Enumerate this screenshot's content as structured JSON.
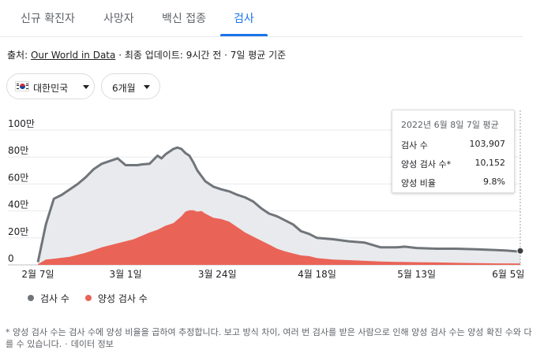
{
  "tabs": [
    {
      "label": "신규 확진자"
    },
    {
      "label": "사망자"
    },
    {
      "label": "백신 접종"
    },
    {
      "label": "검사"
    }
  ],
  "active_tab_index": 3,
  "source": {
    "prefix": "출처: ",
    "link": "Our World in Data",
    "suffix": " · 최종 업데이트: 9시간 전 · 7일 평균 기준"
  },
  "filters": {
    "region": "대한민국",
    "period": "6개월"
  },
  "tooltip": {
    "date": "2022년 6월 8일 7일 평균",
    "rows": [
      {
        "label": "검사 수",
        "value": "103,907"
      },
      {
        "label": "양성 검사 수*",
        "value": "10,152"
      },
      {
        "label": "양성 비율",
        "value": "9.8%"
      }
    ]
  },
  "colors": {
    "tests": "#70757a",
    "tests_fill": "#e8eaed",
    "positive": "#ea6357",
    "accent": "#1a73e8"
  },
  "chart_data": {
    "type": "area",
    "ylabel": "",
    "ylim": [
      0,
      1000000
    ],
    "y_ticks": [
      {
        "value": 0,
        "label": "0"
      },
      {
        "value": 200000,
        "label": "20만"
      },
      {
        "value": 400000,
        "label": "40만"
      },
      {
        "value": 600000,
        "label": "60만"
      },
      {
        "value": 800000,
        "label": "80만"
      },
      {
        "value": 1000000,
        "label": "100만"
      }
    ],
    "x_ticks": [
      {
        "day": 0,
        "label": "2월 7일"
      },
      {
        "day": 22,
        "label": "3월 1일"
      },
      {
        "day": 45,
        "label": "3월 24일"
      },
      {
        "day": 70,
        "label": "4월 18일"
      },
      {
        "day": 95,
        "label": "5월 13일"
      },
      {
        "day": 118,
        "label": "6월 5일"
      }
    ],
    "x_range": [
      0,
      121
    ],
    "series": [
      {
        "name": "검사 수",
        "x": [
          0,
          2,
          4,
          6,
          8,
          10,
          12,
          14,
          16,
          18,
          20,
          22,
          23,
          24,
          25,
          26,
          28,
          30,
          31,
          32,
          33,
          34,
          35,
          36,
          37,
          38,
          39,
          40,
          42,
          44,
          46,
          48,
          50,
          52,
          54,
          56,
          58,
          60,
          62,
          64,
          66,
          68,
          70,
          74,
          78,
          82,
          86,
          88,
          90,
          92,
          95,
          100,
          105,
          110,
          115,
          118,
          120,
          121
        ],
        "values": [
          20000,
          300000,
          490000,
          520000,
          560000,
          600000,
          650000,
          710000,
          750000,
          770000,
          790000,
          740000,
          740000,
          740000,
          740000,
          745000,
          750000,
          810000,
          790000,
          820000,
          840000,
          860000,
          870000,
          860000,
          830000,
          810000,
          760000,
          700000,
          620000,
          580000,
          560000,
          545000,
          520000,
          500000,
          470000,
          420000,
          380000,
          360000,
          330000,
          300000,
          250000,
          230000,
          200000,
          190000,
          175000,
          165000,
          130000,
          130000,
          130000,
          135000,
          125000,
          120000,
          120000,
          115000,
          110000,
          105000,
          100000,
          103907
        ]
      },
      {
        "name": "양성 검사 수",
        "x": [
          0,
          2,
          4,
          8,
          12,
          16,
          20,
          24,
          28,
          30,
          32,
          34,
          36,
          37,
          38,
          39,
          40,
          41,
          42,
          44,
          46,
          48,
          50,
          52,
          54,
          56,
          58,
          60,
          62,
          64,
          66,
          68,
          70,
          74,
          78,
          82,
          86,
          90,
          95,
          100,
          105,
          110,
          115,
          121
        ],
        "values": [
          5000,
          40000,
          45000,
          60000,
          90000,
          130000,
          160000,
          190000,
          240000,
          260000,
          290000,
          310000,
          360000,
          395000,
          405000,
          405000,
          395000,
          400000,
          380000,
          350000,
          340000,
          320000,
          280000,
          240000,
          210000,
          180000,
          150000,
          120000,
          100000,
          85000,
          70000,
          65000,
          50000,
          40000,
          35000,
          30000,
          25000,
          22000,
          20000,
          18000,
          15000,
          13000,
          11000,
          10152
        ]
      }
    ]
  },
  "legend": {
    "tests": "검사 수",
    "positive": "양성 검사 수"
  },
  "footnote": {
    "text": "* 양성 검사 수는 검사 수에 양성 비율을 곱하여 추정합니다. 보고 방식 차이, 여러 번 검사를 받은 사람으로 인해 양성 검사 수는 양성 확진 수와 다를 수 있습니다.",
    "link": "데이터 정보"
  }
}
